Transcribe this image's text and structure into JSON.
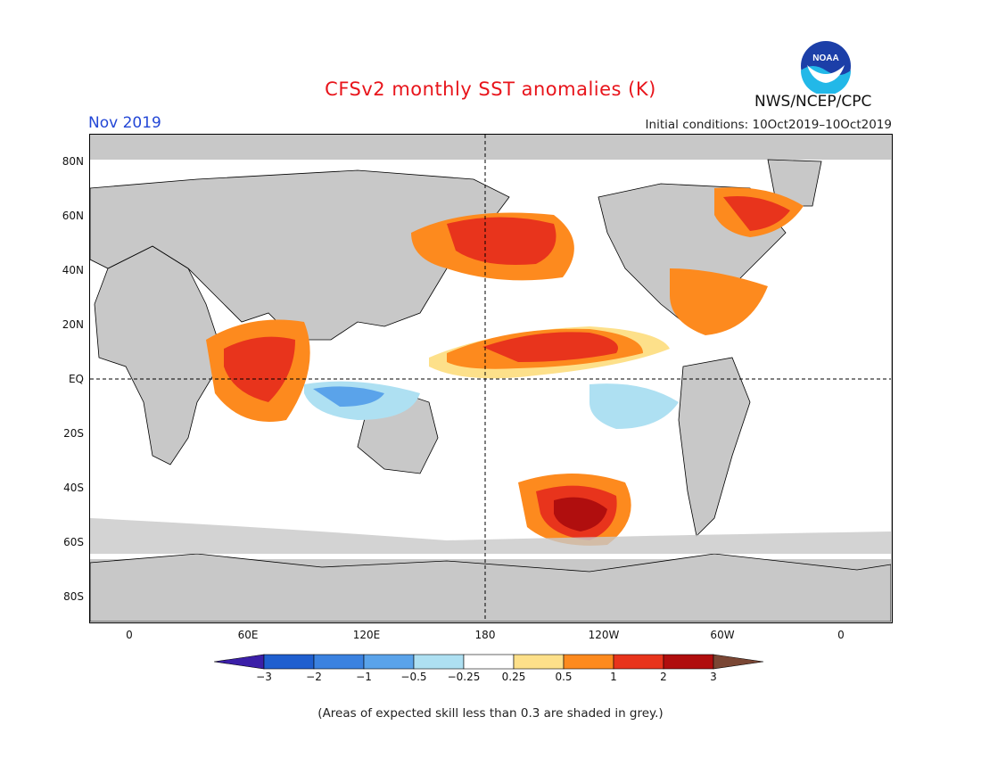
{
  "header": {
    "title": "CFSv2 monthly SST anomalies (K)",
    "agency": "NWS/NCEP/CPC",
    "month": "Nov 2019",
    "initial_conditions": "Initial conditions: 10Oct2019–10Oct2019",
    "logo_text": "NOAA"
  },
  "map": {
    "lat_labels": [
      "80N",
      "60N",
      "40N",
      "20N",
      "EQ",
      "20S",
      "40S",
      "60S",
      "80S"
    ],
    "lon_labels": [
      "0",
      "60E",
      "120E",
      "180",
      "120W",
      "60W",
      "0"
    ],
    "equator_line": "dashed",
    "dateline": "dashed"
  },
  "colorbar": {
    "levels": [
      "−3",
      "−2",
      "−1",
      "−0.5",
      "−0.25",
      "0.25",
      "0.5",
      "1",
      "2",
      "3"
    ],
    "colors": [
      "#3b1fa8",
      "#1f5fcf",
      "#3b82e0",
      "#5aa3ea",
      "#aee0f2",
      "#ffffff",
      "#fde08a",
      "#fd8a1e",
      "#e8341c",
      "#b00e0e",
      "#7a4634"
    ]
  },
  "footnote": "(Areas of expected skill less than 0.3 are shaded in grey.)",
  "colors": {
    "skill_grey": "#c8c8c8",
    "land": "#c8c8c8",
    "title": "#e8141b",
    "month": "#2347d6"
  }
}
